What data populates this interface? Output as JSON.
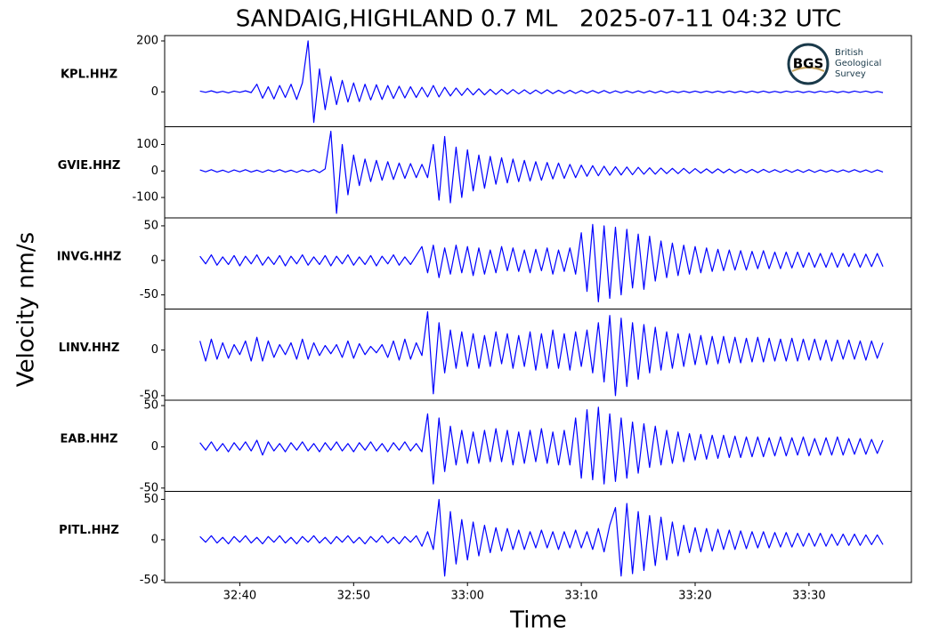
{
  "chart_data": {
    "type": "line",
    "title": "SANDAIG,HIGHLAND 0.7 ML   2025-07-11 04:32 UTC",
    "xlabel": "Time",
    "ylabel": "Velocity nm/s",
    "logo": {
      "abbr": "BGS",
      "name": [
        "British",
        "Geological",
        "Survey"
      ]
    },
    "xlim": [
      1953.4,
      2019
    ],
    "xticks": [
      {
        "value": 1960,
        "label": "32:40"
      },
      {
        "value": 1970,
        "label": "32:50"
      },
      {
        "value": 1980,
        "label": "33:00"
      },
      {
        "value": 1990,
        "label": "33:10"
      },
      {
        "value": 2000,
        "label": "33:20"
      },
      {
        "value": 2010,
        "label": "33:30"
      }
    ],
    "x": [
      1956.5,
      1957,
      1957.5,
      1958,
      1958.5,
      1959,
      1959.5,
      1960,
      1960.5,
      1961,
      1961.5,
      1962,
      1962.5,
      1963,
      1963.5,
      1964,
      1964.5,
      1965,
      1965.5,
      1966,
      1966.5,
      1967,
      1967.5,
      1968,
      1968.5,
      1969,
      1969.5,
      1970,
      1970.5,
      1971,
      1971.5,
      1972,
      1972.5,
      1973,
      1973.5,
      1974,
      1974.5,
      1975,
      1975.5,
      1976,
      1976.5,
      1977,
      1977.5,
      1978,
      1978.5,
      1979,
      1979.5,
      1980,
      1980.5,
      1981,
      1981.5,
      1982,
      1982.5,
      1983,
      1983.5,
      1984,
      1984.5,
      1985,
      1985.5,
      1986,
      1986.5,
      1987,
      1987.5,
      1988,
      1988.5,
      1989,
      1989.5,
      1990,
      1990.5,
      1991,
      1991.5,
      1992,
      1992.5,
      1993,
      1993.5,
      1994,
      1994.5,
      1995,
      1995.5,
      1996,
      1996.5,
      1997,
      1997.5,
      1998,
      1998.5,
      1999,
      1999.5,
      2000,
      2000.5,
      2001,
      2001.5,
      2002,
      2002.5,
      2003,
      2003.5,
      2004,
      2004.5,
      2005,
      2005.5,
      2006,
      2006.5,
      2007,
      2007.5,
      2008,
      2008.5,
      2009,
      2009.5,
      2010,
      2010.5,
      2011,
      2011.5,
      2012,
      2012.5,
      2013,
      2013.5,
      2014,
      2014.5,
      2015,
      2015.5,
      2016,
      2016.5
    ],
    "series": [
      {
        "name": "KPL.HHZ",
        "color": "#0000ff",
        "ylim": [
          -137,
          221
        ],
        "yticks": [
          0,
          200
        ],
        "values": [
          3,
          -2,
          4,
          -3,
          2,
          -4,
          3,
          -2,
          4,
          -3,
          30,
          -25,
          20,
          -28,
          25,
          -22,
          30,
          -30,
          35,
          200,
          -120,
          90,
          -70,
          60,
          -50,
          45,
          -40,
          35,
          -38,
          30,
          -32,
          28,
          -30,
          25,
          -26,
          22,
          -24,
          20,
          -22,
          18,
          -20,
          25,
          -20,
          18,
          -16,
          15,
          -14,
          14,
          -12,
          12,
          -12,
          10,
          -10,
          10,
          -9,
          9,
          -8,
          8,
          -8,
          7,
          -7,
          8,
          -7,
          6,
          -6,
          6,
          -6,
          5,
          -5,
          5,
          -5,
          5,
          -5,
          4,
          -4,
          4,
          -4,
          4,
          -4,
          4,
          -4,
          4,
          -4,
          3,
          -3,
          3,
          -3,
          3,
          -3,
          3,
          -3,
          3,
          -3,
          3,
          -3,
          3,
          -3,
          3,
          -3,
          3,
          -3,
          2,
          -3,
          3,
          -2,
          3,
          -3,
          2,
          -3,
          3,
          -2,
          3,
          -3,
          2,
          -3,
          3,
          -2,
          3,
          -3,
          2,
          -3
        ]
      },
      {
        "name": "GVIE.HHZ",
        "color": "#0000ff",
        "ylim": [
          -177,
          167
        ],
        "yticks": [
          -100,
          0,
          100
        ],
        "values": [
          4,
          -3,
          5,
          -4,
          3,
          -5,
          4,
          -3,
          5,
          -4,
          3,
          -5,
          4,
          -3,
          5,
          -4,
          3,
          -5,
          4,
          -3,
          5,
          -6,
          8,
          150,
          -160,
          100,
          -90,
          60,
          -55,
          45,
          -40,
          40,
          -35,
          35,
          -32,
          30,
          -28,
          28,
          -25,
          25,
          -25,
          100,
          -110,
          130,
          -120,
          90,
          -100,
          80,
          -75,
          60,
          -65,
          55,
          -50,
          50,
          -45,
          45,
          -40,
          40,
          -38,
          35,
          -35,
          32,
          -30,
          30,
          -28,
          25,
          -25,
          22,
          -20,
          20,
          -18,
          18,
          -16,
          16,
          -15,
          15,
          -14,
          14,
          -12,
          12,
          -12,
          11,
          -10,
          10,
          -10,
          10,
          -9,
          9,
          -8,
          8,
          -8,
          8,
          -7,
          7,
          -7,
          6,
          -6,
          6,
          -6,
          6,
          -5,
          5,
          -5,
          5,
          -5,
          5,
          -5,
          5,
          -5,
          4,
          -4,
          4,
          -4,
          4,
          -4,
          5,
          -4,
          4,
          -5,
          4,
          -4
        ]
      },
      {
        "name": "INVG.HHZ",
        "color": "#0000ff",
        "ylim": [
          -70.5,
          61.5
        ],
        "yticks": [
          -50,
          0,
          50
        ],
        "values": [
          6,
          -5,
          8,
          -7,
          5,
          -6,
          7,
          -8,
          6,
          -5,
          8,
          -7,
          5,
          -6,
          7,
          -8,
          6,
          -5,
          8,
          -7,
          5,
          -6,
          7,
          -8,
          6,
          -5,
          8,
          -7,
          5,
          -6,
          7,
          -8,
          6,
          -5,
          8,
          -7,
          5,
          -6,
          7,
          20,
          -18,
          22,
          -25,
          18,
          -20,
          22,
          -18,
          20,
          -22,
          18,
          -20,
          15,
          -18,
          20,
          -15,
          18,
          -16,
          15,
          -18,
          16,
          -15,
          18,
          -20,
          15,
          -16,
          18,
          -20,
          40,
          -45,
          52,
          -60,
          50,
          -55,
          48,
          -50,
          45,
          -40,
          38,
          -42,
          35,
          -30,
          28,
          -25,
          25,
          -22,
          22,
          -20,
          20,
          -18,
          18,
          -16,
          16,
          -15,
          15,
          -14,
          14,
          -14,
          13,
          -12,
          14,
          -12,
          12,
          -12,
          12,
          -11,
          12,
          -10,
          11,
          -10,
          10,
          -10,
          11,
          -10,
          10,
          -9,
          10,
          -10,
          9,
          -9,
          10,
          -9
        ]
      },
      {
        "name": "LINV.HHZ",
        "color": "#0000ff",
        "ylim": [
          -55,
          45
        ],
        "yticks": [
          -50,
          0
        ],
        "values": [
          10,
          -12,
          12,
          -10,
          8,
          -9,
          6,
          -5,
          10,
          -12,
          14,
          -12,
          10,
          -8,
          6,
          -5,
          8,
          -10,
          12,
          -10,
          8,
          -6,
          5,
          -4,
          6,
          -8,
          10,
          -9,
          7,
          -5,
          4,
          -3,
          6,
          -8,
          10,
          -11,
          12,
          -10,
          8,
          -6,
          42,
          -48,
          30,
          -25,
          22,
          -20,
          20,
          -18,
          18,
          -20,
          16,
          -18,
          20,
          -15,
          18,
          -20,
          16,
          -18,
          20,
          -22,
          18,
          -20,
          22,
          -20,
          18,
          -22,
          20,
          -18,
          22,
          -25,
          30,
          -35,
          38,
          -50,
          35,
          -40,
          30,
          -32,
          28,
          -25,
          25,
          -22,
          20,
          -20,
          18,
          -18,
          18,
          -16,
          16,
          -16,
          15,
          -15,
          15,
          -14,
          14,
          -14,
          13,
          -13,
          14,
          -13,
          13,
          -12,
          12,
          -12,
          13,
          -12,
          12,
          -11,
          12,
          -11,
          11,
          -12,
          11,
          -10,
          11,
          -10,
          10,
          -11,
          10,
          -9,
          8
        ]
      },
      {
        "name": "EAB.HHZ",
        "color": "#0000ff",
        "ylim": [
          -54,
          56.5
        ],
        "yticks": [
          -50,
          0,
          50
        ],
        "values": [
          5,
          -4,
          6,
          -5,
          4,
          -6,
          5,
          -4,
          6,
          -5,
          8,
          -10,
          6,
          -5,
          4,
          -6,
          5,
          -4,
          6,
          -5,
          4,
          -6,
          5,
          -4,
          6,
          -5,
          4,
          -6,
          5,
          -4,
          6,
          -5,
          4,
          -6,
          5,
          -4,
          6,
          -5,
          4,
          -6,
          40,
          -45,
          35,
          -30,
          25,
          -22,
          20,
          -20,
          18,
          -20,
          20,
          -18,
          22,
          -18,
          20,
          -22,
          18,
          -20,
          20,
          -18,
          22,
          -20,
          18,
          -22,
          20,
          -22,
          35,
          -38,
          45,
          -40,
          48,
          -45,
          40,
          -42,
          35,
          -38,
          30,
          -32,
          28,
          -25,
          25,
          -22,
          20,
          -20,
          18,
          -18,
          16,
          -16,
          15,
          -15,
          14,
          -14,
          14,
          -13,
          13,
          -13,
          12,
          -12,
          12,
          -12,
          11,
          -11,
          12,
          -11,
          11,
          -10,
          12,
          -11,
          10,
          -10,
          11,
          -10,
          12,
          -10,
          10,
          -9,
          10,
          -9,
          9,
          -8,
          8
        ]
      },
      {
        "name": "PITL.HHZ",
        "color": "#0000ff",
        "ylim": [
          -53,
          60
        ],
        "yticks": [
          -50,
          0,
          50
        ],
        "values": [
          4,
          -3,
          5,
          -4,
          3,
          -5,
          4,
          -3,
          5,
          -4,
          3,
          -5,
          4,
          -3,
          5,
          -4,
          3,
          -5,
          4,
          -3,
          5,
          -4,
          3,
          -5,
          4,
          -3,
          5,
          -4,
          3,
          -5,
          4,
          -3,
          5,
          -4,
          3,
          -5,
          4,
          -3,
          5,
          -8,
          10,
          -12,
          50,
          -45,
          35,
          -30,
          25,
          -25,
          22,
          -20,
          18,
          -16,
          15,
          -14,
          14,
          -12,
          12,
          -12,
          10,
          -10,
          12,
          -10,
          10,
          -12,
          10,
          -10,
          12,
          -10,
          10,
          -12,
          14,
          -15,
          18,
          40,
          -45,
          45,
          -42,
          35,
          -38,
          30,
          -32,
          28,
          -25,
          22,
          -20,
          18,
          -16,
          15,
          -15,
          14,
          -14,
          13,
          -12,
          12,
          -12,
          11,
          -11,
          10,
          -10,
          10,
          -10,
          9,
          -9,
          9,
          -9,
          8,
          -8,
          8,
          -8,
          8,
          -8,
          7,
          -7,
          7,
          -7,
          7,
          -7,
          6,
          -6,
          6,
          -6
        ]
      }
    ]
  }
}
